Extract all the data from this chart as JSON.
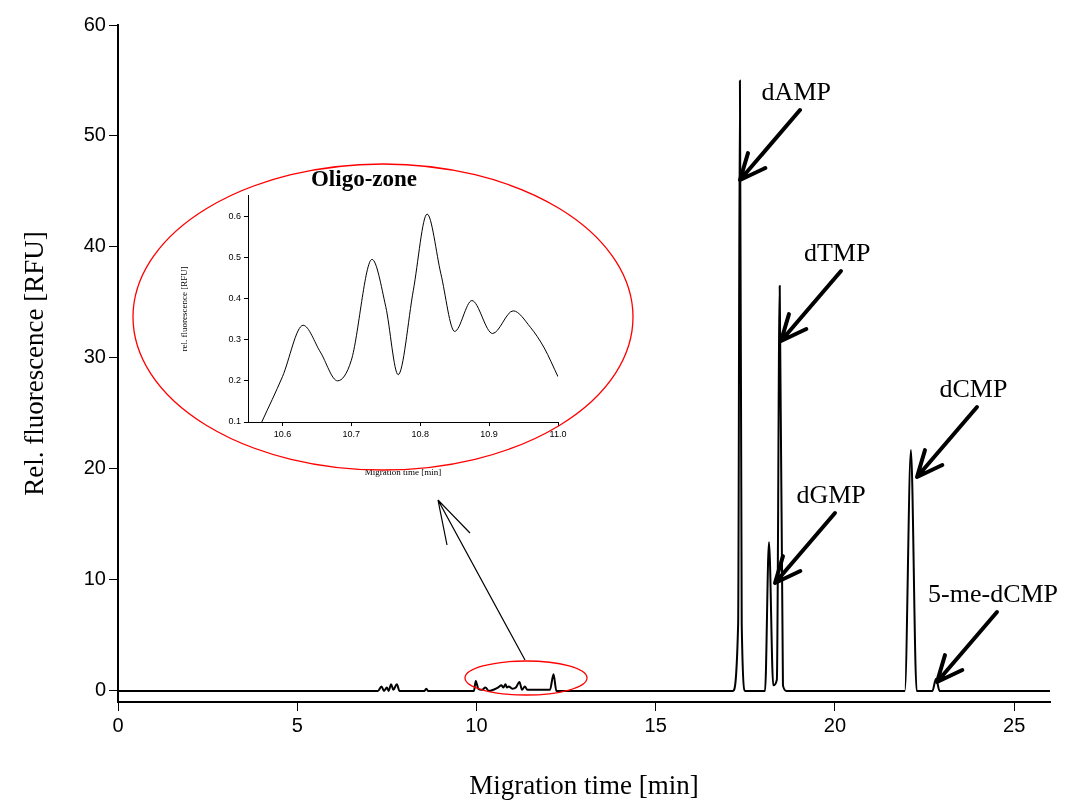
{
  "chart_data": [
    {
      "type": "line",
      "xlabel": "Migration time [min]",
      "ylabel": "Rel. fluorescence [RFU]",
      "xlim": [
        0,
        26
      ],
      "ylim": [
        -1,
        60
      ],
      "xticks": [
        0,
        5,
        10,
        15,
        20,
        25
      ],
      "yticks": [
        0,
        10,
        20,
        30,
        40,
        50,
        60
      ],
      "legend": false,
      "series": [
        {
          "color": "#000000",
          "x": [
            0,
            7.25,
            7.35,
            7.42,
            7.5,
            7.55,
            7.62,
            7.68,
            7.78,
            7.85,
            8.55,
            8.6,
            8.65,
            9.93,
            9.98,
            10.05,
            10.15,
            10.25,
            10.35,
            10.6,
            10.7,
            10.75,
            10.81,
            10.85,
            10.9,
            11.0,
            11.1,
            11.2,
            11.27,
            11.35,
            11.42,
            12.05,
            12.15,
            12.23,
            17.15,
            17.3,
            17.35,
            17.4,
            17.5,
            18.05,
            18.16,
            18.28,
            18.38,
            18.46,
            18.55,
            18.65,
            21.95,
            22.12,
            22.28,
            22.72,
            22.82,
            22.92,
            26
          ],
          "values": [
            0,
            0,
            0.4,
            0,
            0.3,
            0,
            0.6,
            0.1,
            0.6,
            0,
            0,
            0.2,
            0,
            0,
            0.9,
            0.2,
            0.1,
            0.3,
            0,
            0.3,
            0.5,
            0.3,
            0.6,
            0.3,
            0.4,
            0.2,
            0.3,
            0.8,
            0.1,
            0.4,
            0.1,
            0.1,
            1.5,
            0,
            0,
            6,
            55,
            6,
            0,
            0,
            13.4,
            0.5,
            1,
            36.5,
            0.5,
            0,
            0,
            21.7,
            0,
            0,
            1.1,
            0,
            0
          ]
        }
      ],
      "annotations": [
        {
          "text": "dAMP",
          "x": 17.36,
          "y": 46
        },
        {
          "text": "dTMP",
          "x": 18.5,
          "y": 31.5
        },
        {
          "text": "dGMP",
          "x": 18.33,
          "y": 9.7
        },
        {
          "text": "dCMP",
          "x": 22.3,
          "y": 19.3
        },
        {
          "text": "5-me-dCMP",
          "x": 22.85,
          "y": 0.8
        }
      ]
    },
    {
      "type": "line",
      "title": "Oligo-zone",
      "xlabel": "Migration time [min]",
      "ylabel": "rel. fluorescence [RFU]",
      "xlim": [
        10.55,
        11.0
      ],
      "ylim": [
        0.1,
        0.65
      ],
      "xticks": [
        10.6,
        10.7,
        10.8,
        10.9,
        {
          "value": 11.0,
          "label": "11.0"
        }
      ],
      "yticks": [
        0.1,
        0.2,
        0.3,
        0.4,
        0.5,
        0.6
      ],
      "legend": false,
      "series": [
        {
          "color": "#000000",
          "x": [
            10.57,
            10.6,
            10.63,
            10.655,
            10.68,
            10.7,
            10.73,
            10.75,
            10.768,
            10.79,
            10.81,
            10.83,
            10.85,
            10.875,
            10.905,
            10.935,
            10.96,
            10.98,
            11.0
          ],
          "values": [
            0.1,
            0.21,
            0.335,
            0.27,
            0.2,
            0.25,
            0.495,
            0.38,
            0.215,
            0.42,
            0.605,
            0.46,
            0.32,
            0.395,
            0.315,
            0.37,
            0.33,
            0.28,
            0.21
          ]
        }
      ]
    }
  ]
}
